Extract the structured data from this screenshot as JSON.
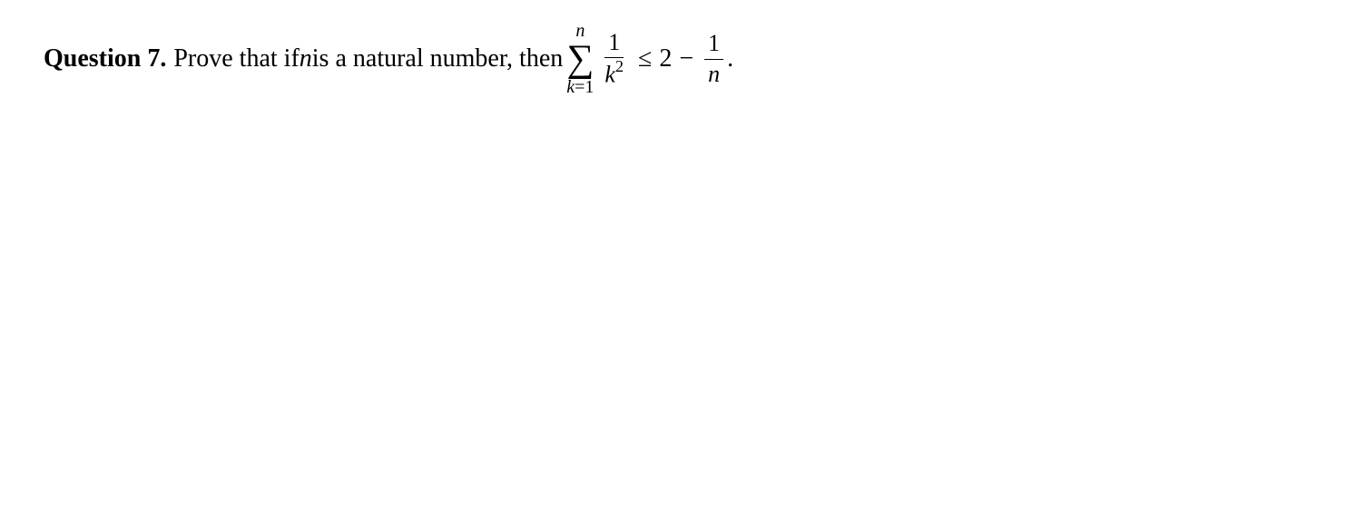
{
  "question": {
    "label": "Question 7.",
    "text_prefix": "Prove that if ",
    "var1": "n",
    "text_mid": " is a natural number, then ",
    "sum": {
      "upper": "n",
      "symbol": "∑",
      "lower_index": "k",
      "lower_eq": "=",
      "lower_start": "1"
    },
    "frac1": {
      "num": "1",
      "den_var": "k",
      "den_exp": "2"
    },
    "rel": "≤",
    "rhs_const": "2",
    "minus": "−",
    "frac2": {
      "num": "1",
      "den": "n"
    },
    "period": "."
  },
  "style": {
    "background_color": "#ffffff",
    "text_color": "#000000",
    "font_size_pt": 21,
    "font_family": "Computer Modern Serif"
  }
}
